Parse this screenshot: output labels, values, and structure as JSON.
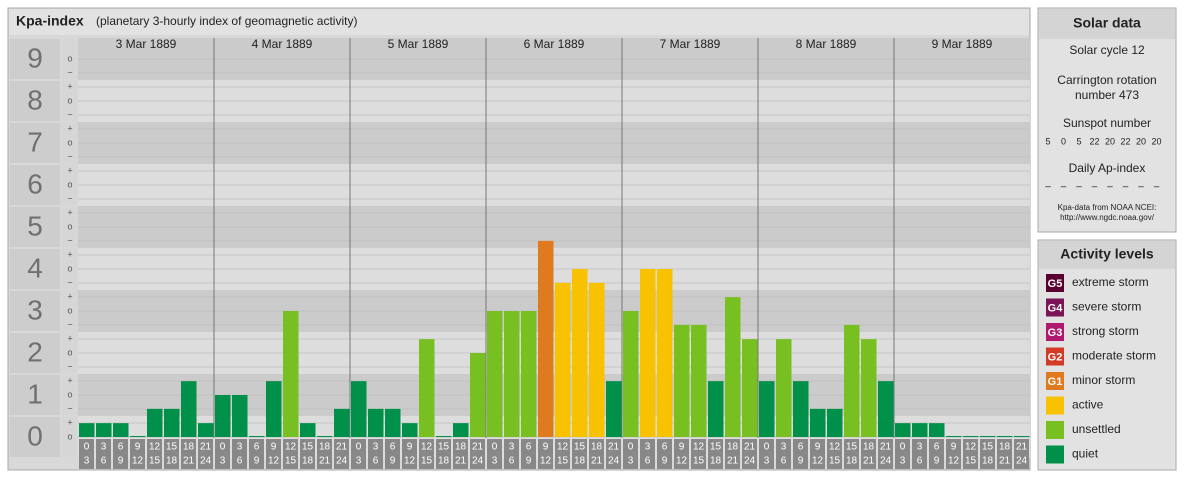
{
  "chart_data": {
    "type": "bar",
    "title": "Kpa-index",
    "subtitle": "(planetary 3-hourly index of geomagnetic activity)",
    "days": [
      "3 Mar 1889",
      "4 Mar 1889",
      "5 Mar 1889",
      "6 Mar 1889",
      "7 Mar 1889",
      "8 Mar 1889",
      "9 Mar 1889"
    ],
    "hours": [
      [
        "0",
        "3"
      ],
      [
        "3",
        "6"
      ],
      [
        "6",
        "9"
      ],
      [
        "9",
        "12"
      ],
      [
        "12",
        "15"
      ],
      [
        "15",
        "18"
      ],
      [
        "18",
        "21"
      ],
      [
        "21",
        "24"
      ]
    ],
    "values": [
      0.33,
      0.33,
      0.33,
      0,
      0.67,
      0.67,
      1.33,
      0.33,
      1,
      1,
      0,
      1.33,
      3,
      0.33,
      0,
      0.67,
      1.33,
      0.67,
      0.67,
      0.33,
      2.33,
      0,
      0.33,
      2,
      3,
      3,
      3,
      4.67,
      3.67,
      4,
      3.67,
      1.33,
      3,
      4,
      4,
      2.67,
      2.67,
      1.33,
      3.33,
      2.33,
      1.33,
      2.33,
      1.33,
      0.67,
      0.67,
      2.67,
      2.33,
      1.33,
      0.33,
      0.33,
      0.33,
      0,
      0,
      0,
      0,
      0
    ],
    "colors": [
      "#00904a",
      "#00904a",
      "#00904a",
      "#00904a",
      "#00904a",
      "#00904a",
      "#00904a",
      "#00904a",
      "#00904a",
      "#00904a",
      "#00904a",
      "#00904a",
      "#78c021",
      "#00904a",
      "#00904a",
      "#00904a",
      "#00904a",
      "#00904a",
      "#00904a",
      "#00904a",
      "#78c021",
      "#00904a",
      "#00904a",
      "#78c021",
      "#78c021",
      "#78c021",
      "#78c021",
      "#e07a1e",
      "#f8c200",
      "#f8c200",
      "#f8c200",
      "#00904a",
      "#78c021",
      "#f8c200",
      "#f8c200",
      "#78c021",
      "#78c021",
      "#00904a",
      "#78c021",
      "#78c021",
      "#00904a",
      "#78c021",
      "#00904a",
      "#00904a",
      "#00904a",
      "#78c021",
      "#78c021",
      "#00904a",
      "#00904a",
      "#00904a",
      "#00904a",
      "#00904a",
      "#00904a",
      "#00904a",
      "#00904a",
      "#00904a"
    ],
    "ylim": [
      -0.5,
      9.5
    ],
    "yticks": [
      0,
      1,
      2,
      3,
      4,
      5,
      6,
      7,
      8,
      9
    ],
    "minor_tick_labels": [
      "+",
      "o",
      "−"
    ]
  },
  "solar_data": {
    "title": "Solar data",
    "cycle": "Solar cycle 12",
    "carrington": [
      "Carrington rotation",
      "number 473"
    ],
    "sunspot_title": "Sunspot number",
    "sunspots": [
      5,
      0,
      5,
      22,
      20,
      22,
      20,
      20
    ],
    "ap_title": "Daily Ap-index",
    "ap": [
      "–",
      "–",
      "–",
      "–",
      "–",
      "–",
      "–",
      "–"
    ],
    "source": [
      "Kpa-data from NOAA NCEI:",
      "http://www.ngdc.noaa.gov/"
    ]
  },
  "activity_levels": {
    "title": "Activity levels",
    "items": [
      {
        "badge": "G5",
        "label": "extreme storm",
        "color": "#5a0030"
      },
      {
        "badge": "G4",
        "label": "severe storm",
        "color": "#7a1456"
      },
      {
        "badge": "G3",
        "label": "strong storm",
        "color": "#b0186e"
      },
      {
        "badge": "G2",
        "label": "moderate storm",
        "color": "#d23a26"
      },
      {
        "badge": "G1",
        "label": "minor storm",
        "color": "#e07a1e"
      },
      {
        "badge": null,
        "label": "active",
        "color": "#f8c200"
      },
      {
        "badge": null,
        "label": "unsettled",
        "color": "#78c021"
      },
      {
        "badge": null,
        "label": "quiet",
        "color": "#00904a"
      }
    ]
  }
}
